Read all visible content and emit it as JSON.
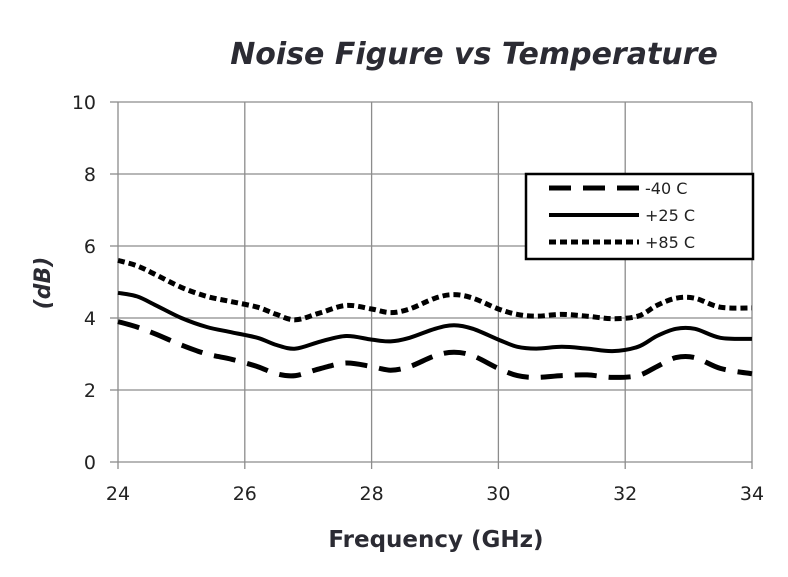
{
  "chart_data": {
    "type": "line",
    "title": "Noise Figure vs Temperature",
    "xlabel": "Frequency (GHz)",
    "ylabel": "(dB)",
    "xlim": [
      24,
      34
    ],
    "ylim": [
      0,
      10
    ],
    "xticks": [
      24,
      26,
      28,
      30,
      32,
      34
    ],
    "yticks": [
      0,
      2,
      4,
      6,
      8,
      10
    ],
    "grid": true,
    "legend_position": "top-right",
    "series": [
      {
        "name": "-40 C",
        "style": "long-dash",
        "x": [
          24,
          24.3,
          24.6,
          25,
          25.4,
          25.8,
          26.2,
          26.5,
          26.8,
          27.2,
          27.6,
          28,
          28.3,
          28.6,
          29,
          29.3,
          29.6,
          30,
          30.3,
          30.6,
          31,
          31.4,
          31.8,
          32.2,
          32.5,
          32.8,
          33.1,
          33.5,
          34
        ],
        "y": [
          3.9,
          3.75,
          3.55,
          3.25,
          3.0,
          2.85,
          2.65,
          2.45,
          2.4,
          2.6,
          2.75,
          2.65,
          2.55,
          2.65,
          2.95,
          3.05,
          2.95,
          2.6,
          2.4,
          2.35,
          2.4,
          2.42,
          2.35,
          2.4,
          2.65,
          2.9,
          2.9,
          2.6,
          2.45
        ]
      },
      {
        "name": "+25 C",
        "style": "solid",
        "x": [
          24,
          24.3,
          24.6,
          25,
          25.4,
          25.8,
          26.2,
          26.5,
          26.8,
          27.2,
          27.6,
          28,
          28.3,
          28.6,
          29,
          29.3,
          29.6,
          30,
          30.3,
          30.6,
          31,
          31.4,
          31.8,
          32.2,
          32.5,
          32.8,
          33.1,
          33.5,
          34
        ],
        "y": [
          4.7,
          4.6,
          4.35,
          4.0,
          3.75,
          3.6,
          3.45,
          3.25,
          3.15,
          3.35,
          3.5,
          3.4,
          3.35,
          3.45,
          3.7,
          3.8,
          3.7,
          3.4,
          3.2,
          3.15,
          3.2,
          3.15,
          3.08,
          3.2,
          3.5,
          3.7,
          3.7,
          3.45,
          3.42
        ]
      },
      {
        "name": "+85 C",
        "style": "short-dash",
        "x": [
          24,
          24.3,
          24.6,
          25,
          25.4,
          25.8,
          26.2,
          26.5,
          26.8,
          27.2,
          27.6,
          28,
          28.3,
          28.6,
          29,
          29.3,
          29.6,
          30,
          30.3,
          30.6,
          31,
          31.4,
          31.8,
          32.2,
          32.5,
          32.8,
          33.1,
          33.5,
          34
        ],
        "y": [
          5.6,
          5.45,
          5.2,
          4.85,
          4.6,
          4.45,
          4.3,
          4.1,
          3.95,
          4.15,
          4.35,
          4.25,
          4.15,
          4.25,
          4.55,
          4.65,
          4.55,
          4.25,
          4.1,
          4.05,
          4.1,
          4.05,
          3.98,
          4.05,
          4.35,
          4.55,
          4.55,
          4.3,
          4.28
        ]
      }
    ]
  }
}
